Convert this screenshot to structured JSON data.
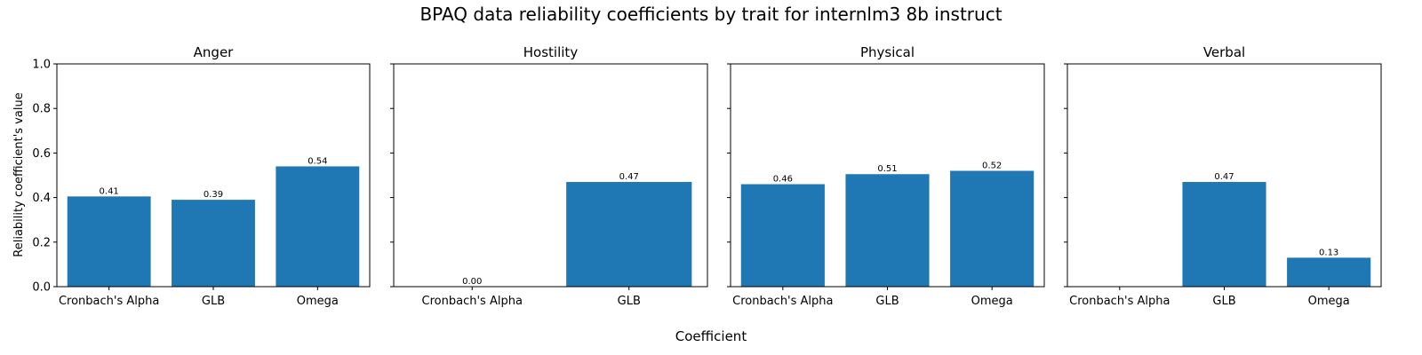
{
  "figure": {
    "title": "BPAQ data reliability coefficients by trait for internlm3 8b instruct",
    "xlabel": "Coefficient",
    "ylabel": "Reliability coefficient's value"
  },
  "chart_data": [
    {
      "type": "bar",
      "title": "Anger",
      "categories": [
        "Cronbach's Alpha",
        "GLB",
        "Omega"
      ],
      "values": [
        0.405,
        0.39,
        0.54
      ],
      "labels": [
        "0.41",
        "0.39",
        "0.54"
      ],
      "ylim": [
        0,
        1.0
      ],
      "yticks": [
        "0.0",
        "0.2",
        "0.4",
        "0.6",
        "0.8",
        "1.0"
      ],
      "bar_color": "#1f77b4"
    },
    {
      "type": "bar",
      "title": "Hostility",
      "categories": [
        "Cronbach's Alpha",
        "GLB"
      ],
      "values": [
        0.0,
        0.47
      ],
      "labels": [
        "0.00",
        "0.47"
      ],
      "ylim": [
        0,
        1.0
      ],
      "yticks": [
        "0.0",
        "0.2",
        "0.4",
        "0.6",
        "0.8",
        "1.0"
      ],
      "bar_color": "#1f77b4"
    },
    {
      "type": "bar",
      "title": "Physical",
      "categories": [
        "Cronbach's Alpha",
        "GLB",
        "Omega"
      ],
      "values": [
        0.46,
        0.505,
        0.52
      ],
      "labels": [
        "0.46",
        "0.51",
        "0.52"
      ],
      "ylim": [
        0,
        1.0
      ],
      "yticks": [
        "0.0",
        "0.2",
        "0.4",
        "0.6",
        "0.8",
        "1.0"
      ],
      "bar_color": "#1f77b4"
    },
    {
      "type": "bar",
      "title": "Verbal",
      "categories": [
        "Cronbach's Alpha",
        "GLB",
        "Omega"
      ],
      "values": [
        null,
        0.47,
        0.13
      ],
      "labels": [
        null,
        "0.47",
        "0.13"
      ],
      "ylim": [
        0,
        1.0
      ],
      "yticks": [
        "0.0",
        "0.2",
        "0.4",
        "0.6",
        "0.8",
        "1.0"
      ],
      "bar_color": "#1f77b4"
    }
  ]
}
